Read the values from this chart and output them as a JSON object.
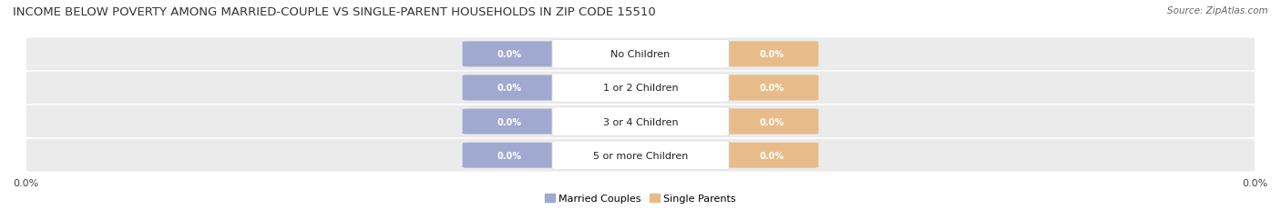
{
  "title": "INCOME BELOW POVERTY AMONG MARRIED-COUPLE VS SINGLE-PARENT HOUSEHOLDS IN ZIP CODE 15510",
  "source": "Source: ZipAtlas.com",
  "categories": [
    "No Children",
    "1 or 2 Children",
    "3 or 4 Children",
    "5 or more Children"
  ],
  "married_values": [
    0.0,
    0.0,
    0.0,
    0.0
  ],
  "single_values": [
    0.0,
    0.0,
    0.0,
    0.0
  ],
  "married_color": "#a0aad0",
  "single_color": "#e8bc8a",
  "row_bg_color": "#ebebeb",
  "label_bg_color": "#ffffff",
  "legend_married": "Married Couples",
  "legend_single": "Single Parents",
  "axis_label": "0.0%",
  "title_fontsize": 9.5,
  "source_fontsize": 7.5,
  "value_fontsize": 7,
  "category_fontsize": 8,
  "legend_fontsize": 8,
  "bg_color": "#ffffff"
}
